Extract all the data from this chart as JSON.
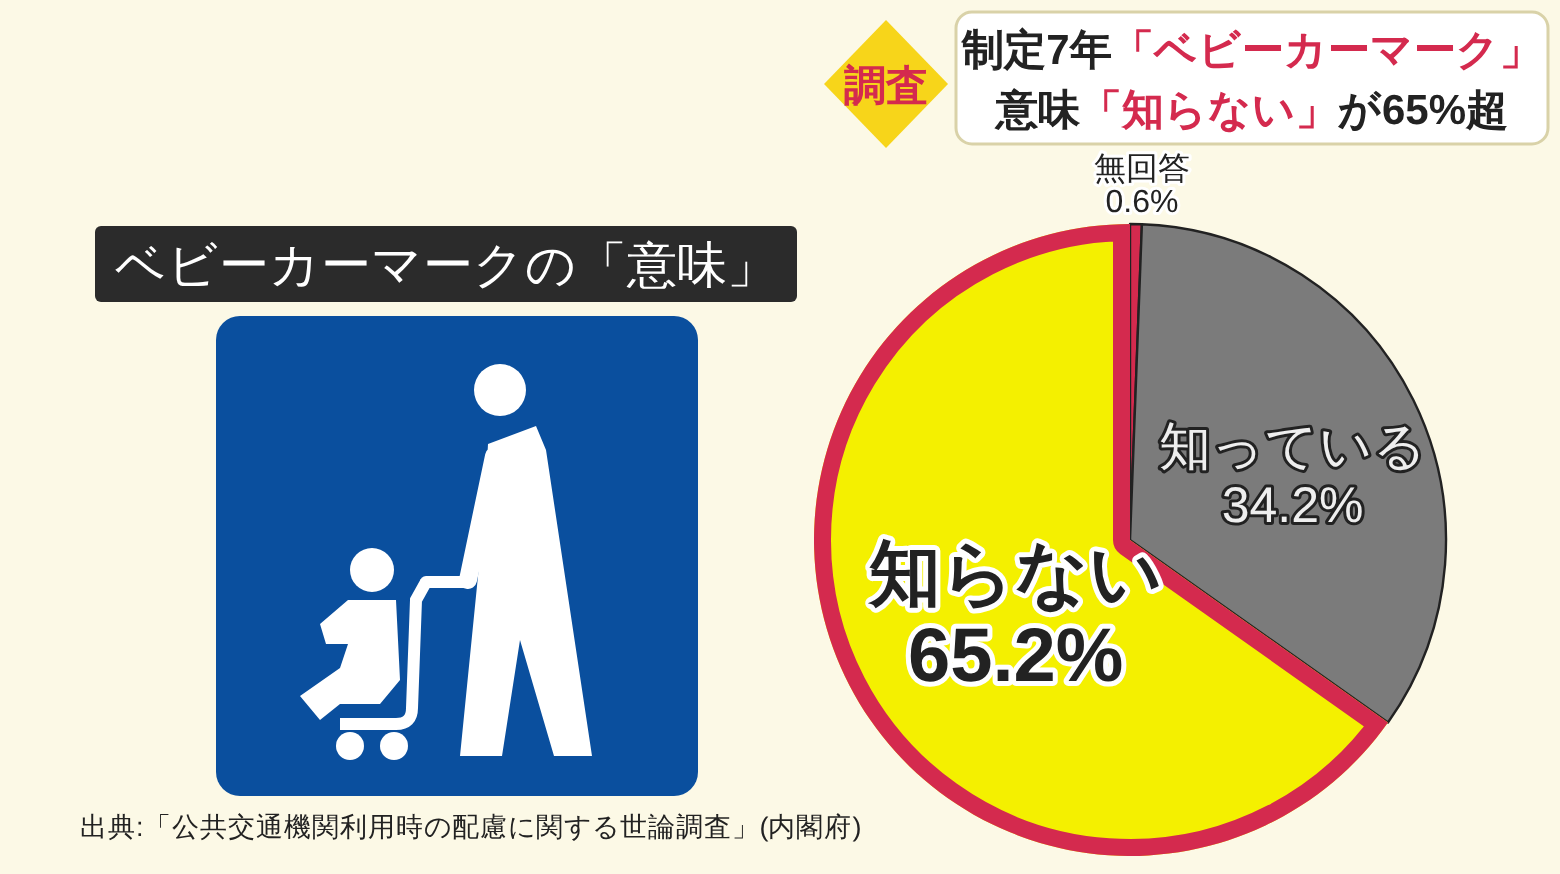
{
  "chart_data": {
    "type": "pie",
    "title": "制定7年「ベビーカーマーク」",
    "subtitle": "意味「知らない」が65%超",
    "categories": [
      "無回答",
      "知っている",
      "知らない"
    ],
    "values": [
      0.6,
      34.2,
      65.2
    ],
    "colors": [
      "#d42a4e",
      "#7b7b7b",
      "#f4f000"
    ],
    "value_labels": [
      "0.6%",
      "34.2%",
      "65.2%"
    ],
    "annotations": [
      "調査",
      "ベビーカーマークの「意味」",
      "出典:「公共交通機関利用時の配慮に関する世論調査」(内閣府)"
    ]
  }
}
